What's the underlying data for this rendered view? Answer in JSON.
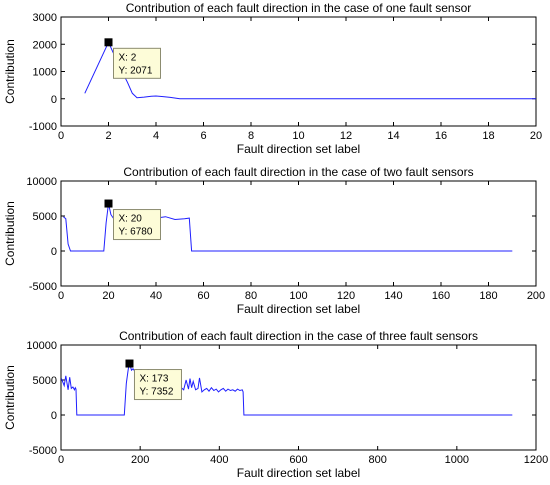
{
  "chart_data": [
    {
      "type": "line",
      "title": "Contribution of each fault direction in the case of one fault sensor",
      "xlabel": "Fault direction set label",
      "ylabel": "Contribution",
      "xlim": [
        0,
        20
      ],
      "ylim": [
        -1000,
        3000
      ],
      "xticks": [
        "0",
        "2",
        "4",
        "6",
        "8",
        "10",
        "12",
        "14",
        "16",
        "18",
        "20"
      ],
      "yticks": [
        "-1000",
        "0",
        "1000",
        "2000",
        "3000"
      ],
      "series": [
        {
          "x": [
            1,
            2,
            2.4,
            2.8,
            3,
            3.2,
            3.5,
            3.8,
            4,
            4.3,
            4.6,
            5,
            6,
            8,
            10,
            12,
            14,
            16,
            18,
            20
          ],
          "y": [
            200,
            2071,
            1300,
            600,
            200,
            40,
            60,
            90,
            100,
            80,
            50,
            0,
            0,
            0,
            0,
            0,
            0,
            0,
            0,
            0
          ]
        }
      ],
      "datatip": {
        "x_label": "X: 2",
        "y_label": "Y: 2071",
        "x": 2,
        "y": 2071
      }
    },
    {
      "type": "line",
      "title": "Contribution of each fault direction in the case of two fault sensors",
      "xlabel": "Fault direction set label",
      "ylabel": "Contribution",
      "xlim": [
        0,
        200
      ],
      "ylim": [
        -5000,
        10000
      ],
      "xticks": [
        "0",
        "20",
        "40",
        "60",
        "80",
        "100",
        "120",
        "140",
        "160",
        "180",
        "200"
      ],
      "yticks": [
        "-5000",
        "0",
        "5000",
        "10000"
      ],
      "series": [
        {
          "x": [
            1,
            2,
            3,
            4,
            5,
            18,
            19,
            20,
            21,
            22,
            23,
            25,
            28,
            32,
            36,
            40,
            44,
            48,
            52,
            54,
            55,
            56,
            60,
            100,
            150,
            190
          ],
          "y": [
            4900,
            4600,
            1000,
            0,
            0,
            0,
            4000,
            6780,
            5200,
            4700,
            4800,
            4600,
            4700,
            4800,
            4600,
            4700,
            4900,
            4500,
            4600,
            4700,
            0,
            0,
            0,
            0,
            0,
            0
          ]
        }
      ],
      "datatip": {
        "x_label": "X: 20",
        "y_label": "Y: 6780",
        "x": 20,
        "y": 6780
      }
    },
    {
      "type": "line",
      "title": "Contribution of each fault direction in the case of three fault sensors",
      "xlabel": "Fault direction set label",
      "ylabel": "Contribution",
      "xlim": [
        0,
        1200
      ],
      "ylim": [
        -5000,
        10000
      ],
      "xticks": [
        "0",
        "200",
        "400",
        "600",
        "800",
        "1000",
        "1200"
      ],
      "yticks": [
        "-5000",
        "0",
        "5000",
        "10000"
      ],
      "series": [
        {
          "x": [
            1,
            8,
            12,
            18,
            22,
            26,
            30,
            34,
            36,
            38,
            40,
            160,
            165,
            170,
            173,
            178,
            182,
            186,
            190,
            196,
            202,
            208,
            214,
            220,
            226,
            232,
            238,
            244,
            250,
            256,
            262,
            268,
            274,
            280,
            286,
            292,
            298,
            304,
            310,
            316,
            322,
            326,
            330,
            334,
            340,
            346,
            350,
            356,
            362,
            368,
            374,
            380,
            386,
            392,
            398,
            404,
            410,
            416,
            422,
            428,
            434,
            440,
            446,
            452,
            458,
            460,
            462,
            600,
            800,
            1000,
            1140
          ],
          "y": [
            5200,
            4200,
            5600,
            3600,
            5400,
            3800,
            4000,
            3600,
            3900,
            3700,
            0,
            0,
            4500,
            6600,
            7352,
            6400,
            6600,
            6300,
            6500,
            6400,
            6500,
            6400,
            6300,
            6500,
            6400,
            6300,
            6200,
            3300,
            3700,
            3400,
            3900,
            3500,
            4000,
            3600,
            3800,
            3500,
            4200,
            3900,
            3600,
            5000,
            3700,
            5200,
            3900,
            4800,
            3600,
            3800,
            5300,
            3300,
            3600,
            3800,
            3400,
            3900,
            3500,
            3700,
            3300,
            3600,
            3800,
            3400,
            3700,
            3500,
            3600,
            3400,
            3700,
            3500,
            3600,
            3300,
            0,
            0,
            0,
            0,
            0
          ]
        }
      ],
      "datatip": {
        "x_label": "X: 173",
        "y_label": "Y: 7352",
        "x": 173,
        "y": 7352
      }
    }
  ]
}
